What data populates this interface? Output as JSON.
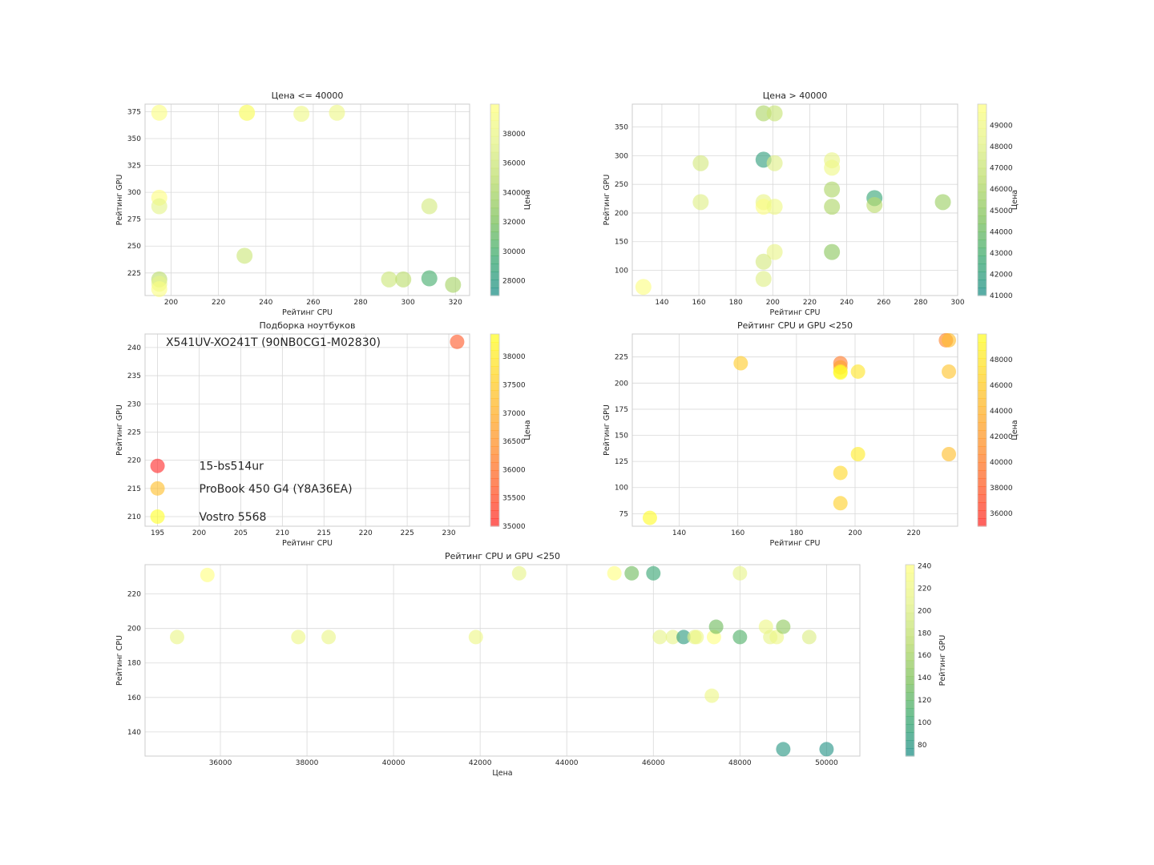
{
  "colorscales": {
    "viridis_like": [
      "#1f8f8a",
      "#3aa86f",
      "#7dc15a",
      "#b9db6a",
      "#e3f28a",
      "#ffff80"
    ],
    "autumn_like": [
      "#ff2a2a",
      "#ff5a2a",
      "#ff8a2a",
      "#ffb02a",
      "#ffd82a",
      "#ffff2a"
    ]
  },
  "chart_data": [
    {
      "type": "scatter",
      "title": "Цена <= 40000",
      "xlabel": "Рейтинг CPU",
      "ylabel": "Рейтинг GPU",
      "xlim": [
        189,
        326
      ],
      "ylim": [
        204,
        382
      ],
      "xticks": [
        200,
        220,
        240,
        260,
        280,
        300,
        320
      ],
      "yticks": [
        225,
        250,
        275,
        300,
        325,
        350,
        375
      ],
      "grid": true,
      "colorbar": {
        "label": "Цена",
        "min": 27000,
        "max": 40000,
        "ticks": [
          28000,
          30000,
          32000,
          34000,
          36000,
          38000
        ],
        "scale": "viridis_like"
      },
      "points": [
        {
          "x": 195,
          "y": 374,
          "c": 39500
        },
        {
          "x": 232,
          "y": 374,
          "c": 39200
        },
        {
          "x": 232,
          "y": 374,
          "c": 39600
        },
        {
          "x": 255,
          "y": 373,
          "c": 38500
        },
        {
          "x": 270,
          "y": 374,
          "c": 38300
        },
        {
          "x": 195,
          "y": 295,
          "c": 39800
        },
        {
          "x": 195,
          "y": 287,
          "c": 37500
        },
        {
          "x": 309,
          "y": 287,
          "c": 36500
        },
        {
          "x": 231,
          "y": 241,
          "c": 36000
        },
        {
          "x": 195,
          "y": 219,
          "c": 35000
        },
        {
          "x": 195,
          "y": 215,
          "c": 38000
        },
        {
          "x": 195,
          "y": 210,
          "c": 39500
        },
        {
          "x": 292,
          "y": 219,
          "c": 36000
        },
        {
          "x": 298,
          "y": 219,
          "c": 35000
        },
        {
          "x": 309,
          "y": 220,
          "c": 30000
        },
        {
          "x": 319,
          "y": 214,
          "c": 34000
        }
      ]
    },
    {
      "type": "scatter",
      "title": "Цена > 40000",
      "xlabel": "Рейтинг CPU",
      "ylabel": "Рейтинг GPU",
      "xlim": [
        124,
        300
      ],
      "ylim": [
        56,
        390
      ],
      "xticks": [
        140,
        160,
        180,
        200,
        220,
        240,
        260,
        280,
        300
      ],
      "yticks": [
        100,
        150,
        200,
        250,
        300,
        350
      ],
      "grid": true,
      "colorbar": {
        "label": "Цена",
        "min": 41000,
        "max": 50000,
        "ticks": [
          41000,
          42000,
          43000,
          44000,
          45000,
          46000,
          47000,
          48000,
          49000
        ],
        "scale": "viridis_like"
      },
      "points": [
        {
          "x": 130,
          "y": 71,
          "c": 49800
        },
        {
          "x": 195,
          "y": 374,
          "c": 46000
        },
        {
          "x": 201,
          "y": 374,
          "c": 47000
        },
        {
          "x": 161,
          "y": 287,
          "c": 47500
        },
        {
          "x": 195,
          "y": 293,
          "c": 42000
        },
        {
          "x": 201,
          "y": 287,
          "c": 48000
        },
        {
          "x": 232,
          "y": 292,
          "c": 48500
        },
        {
          "x": 232,
          "y": 279,
          "c": 49000
        },
        {
          "x": 232,
          "y": 241,
          "c": 46000
        },
        {
          "x": 255,
          "y": 226,
          "c": 42500
        },
        {
          "x": 255,
          "y": 214,
          "c": 46500
        },
        {
          "x": 292,
          "y": 219,
          "c": 45500
        },
        {
          "x": 161,
          "y": 219,
          "c": 48000
        },
        {
          "x": 195,
          "y": 219,
          "c": 48500
        },
        {
          "x": 195,
          "y": 211,
          "c": 49800
        },
        {
          "x": 201,
          "y": 211,
          "c": 49000
        },
        {
          "x": 232,
          "y": 211,
          "c": 46000
        },
        {
          "x": 201,
          "y": 132,
          "c": 48500
        },
        {
          "x": 232,
          "y": 132,
          "c": 45000
        },
        {
          "x": 195,
          "y": 115,
          "c": 47500
        },
        {
          "x": 195,
          "y": 85,
          "c": 48000
        }
      ]
    },
    {
      "type": "scatter",
      "title": "Подборка ноутбуков",
      "xlabel": "Рейтинг CPU",
      "ylabel": "Рейтинг GPU",
      "xlim": [
        193.5,
        232.5
      ],
      "ylim": [
        208.3,
        242.4
      ],
      "xticks": [
        195,
        200,
        205,
        210,
        215,
        220,
        225,
        230
      ],
      "yticks": [
        210,
        215,
        220,
        225,
        230,
        235,
        240
      ],
      "grid": true,
      "colorbar": {
        "label": "Цена",
        "min": 35000,
        "max": 38400,
        "ticks": [
          35000,
          35500,
          36000,
          36500,
          37000,
          37500,
          38000
        ],
        "scale": "autumn_like"
      },
      "points": [
        {
          "x": 231,
          "y": 241,
          "c": 35700
        },
        {
          "x": 195,
          "y": 219,
          "c": 35000
        },
        {
          "x": 195,
          "y": 215,
          "c": 37300
        },
        {
          "x": 195,
          "y": 210,
          "c": 38400
        }
      ],
      "annotations": [
        {
          "text": "X541UV-XO241T (90NB0CG1-M02830)",
          "x": 196,
          "y": 241
        },
        {
          "text": "15-bs514ur",
          "x": 200,
          "y": 219
        },
        {
          "text": "ProBook 450 G4 (Y8A36EA)",
          "x": 200,
          "y": 215
        },
        {
          "text": "Vostro 5568",
          "x": 200,
          "y": 210
        }
      ]
    },
    {
      "type": "scatter",
      "title": "Рейтинг CPU и GPU <250",
      "xlabel": "Рейтинг CPU",
      "ylabel": "Рейтинг GPU",
      "xlim": [
        124,
        235
      ],
      "ylim": [
        63,
        247
      ],
      "xticks": [
        140,
        160,
        180,
        200,
        220
      ],
      "yticks": [
        75,
        100,
        125,
        150,
        175,
        200,
        225
      ],
      "grid": true,
      "colorbar": {
        "label": "Цена",
        "min": 35000,
        "max": 50000,
        "ticks": [
          36000,
          38000,
          40000,
          42000,
          44000,
          46000,
          48000
        ],
        "scale": "autumn_like"
      },
      "points": [
        {
          "x": 130,
          "y": 71,
          "c": 49800
        },
        {
          "x": 161,
          "y": 219,
          "c": 46000
        },
        {
          "x": 195,
          "y": 219,
          "c": 40000
        },
        {
          "x": 195,
          "y": 215,
          "c": 43000
        },
        {
          "x": 195,
          "y": 211,
          "c": 49500
        },
        {
          "x": 195,
          "y": 210,
          "c": 49800
        },
        {
          "x": 201,
          "y": 211,
          "c": 48000
        },
        {
          "x": 231,
          "y": 241,
          "c": 40500
        },
        {
          "x": 232,
          "y": 241,
          "c": 45000
        },
        {
          "x": 232,
          "y": 211,
          "c": 45500
        },
        {
          "x": 201,
          "y": 132,
          "c": 48500
        },
        {
          "x": 232,
          "y": 132,
          "c": 45000
        },
        {
          "x": 195,
          "y": 114,
          "c": 47000
        },
        {
          "x": 195,
          "y": 85,
          "c": 46500
        }
      ]
    },
    {
      "type": "scatter",
      "title": "Рейтинг CPU и GPU <250",
      "xlabel": "Цена",
      "ylabel": "Рейтинг CPU",
      "xlim": [
        34260,
        50770
      ],
      "ylim": [
        126,
        237
      ],
      "xticks": [
        36000,
        38000,
        40000,
        42000,
        44000,
        46000,
        48000,
        50000
      ],
      "yticks": [
        140,
        160,
        180,
        200,
        220
      ],
      "grid": true,
      "colorbar": {
        "label": "Рейтинг GPU",
        "min": 70,
        "max": 241,
        "ticks": [
          80,
          100,
          120,
          140,
          160,
          180,
          200,
          220,
          240
        ],
        "scale": "viridis_like"
      },
      "points": [
        {
          "x": 35000,
          "y": 195,
          "c": 215
        },
        {
          "x": 35700,
          "y": 231,
          "c": 241
        },
        {
          "x": 37800,
          "y": 195,
          "c": 219
        },
        {
          "x": 38500,
          "y": 195,
          "c": 215
        },
        {
          "x": 41900,
          "y": 195,
          "c": 219
        },
        {
          "x": 42900,
          "y": 232,
          "c": 211
        },
        {
          "x": 45100,
          "y": 232,
          "c": 241
        },
        {
          "x": 45500,
          "y": 232,
          "c": 132
        },
        {
          "x": 46000,
          "y": 232,
          "c": 100
        },
        {
          "x": 46150,
          "y": 195,
          "c": 211
        },
        {
          "x": 46450,
          "y": 195,
          "c": 211
        },
        {
          "x": 46700,
          "y": 195,
          "c": 85
        },
        {
          "x": 46950,
          "y": 195,
          "c": 211
        },
        {
          "x": 47000,
          "y": 195,
          "c": 219
        },
        {
          "x": 47350,
          "y": 161,
          "c": 219
        },
        {
          "x": 47400,
          "y": 195,
          "c": 240
        },
        {
          "x": 47450,
          "y": 201,
          "c": 132
        },
        {
          "x": 48000,
          "y": 195,
          "c": 115
        },
        {
          "x": 48000,
          "y": 232,
          "c": 211
        },
        {
          "x": 48600,
          "y": 201,
          "c": 219
        },
        {
          "x": 48700,
          "y": 195,
          "c": 211
        },
        {
          "x": 48850,
          "y": 195,
          "c": 219
        },
        {
          "x": 49000,
          "y": 201,
          "c": 150
        },
        {
          "x": 49000,
          "y": 130,
          "c": 80
        },
        {
          "x": 49600,
          "y": 195,
          "c": 200
        },
        {
          "x": 50000,
          "y": 130,
          "c": 75
        }
      ]
    }
  ]
}
